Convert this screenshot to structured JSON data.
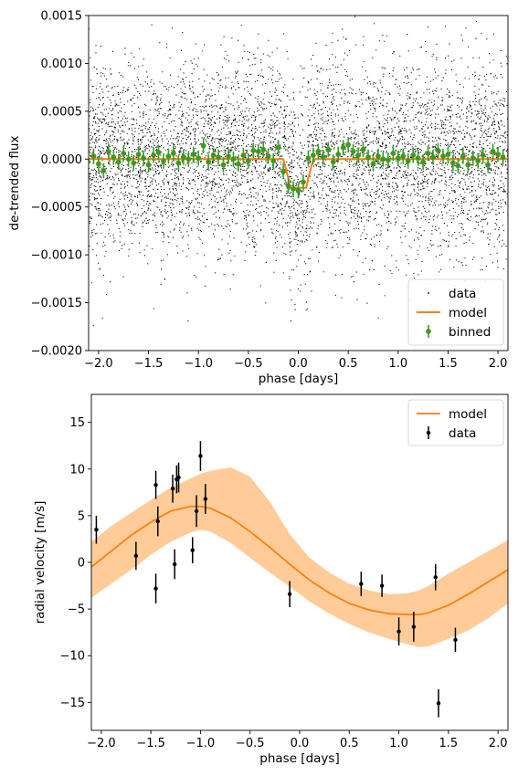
{
  "chart_data": [
    {
      "type": "scatter",
      "xlabel": "phase [days]",
      "ylabel": "de-trended flux",
      "xlim": [
        -2.1,
        2.1
      ],
      "ylim": [
        -0.002,
        0.0015
      ],
      "xticks": [
        "−2.0",
        "−1.5",
        "−1.0",
        "−0.5",
        "0.0",
        "0.5",
        "1.0",
        "1.5",
        "2.0"
      ],
      "yticks": [
        "0.0015",
        "0.0010",
        "0.0005",
        "0.0000",
        "−0.0005",
        "−0.0010",
        "−0.0015",
        "−0.0020"
      ],
      "legend": {
        "placement": "lower-right",
        "entries": [
          "data",
          "model",
          "binned"
        ]
      },
      "colors": {
        "data": "#000000",
        "model": "#ff7f0e",
        "binned": "#2ca02c",
        "binned_edge": "#7f7f00"
      },
      "series": [
        {
          "name": "data",
          "kind": "points",
          "approx_count": 6000,
          "center": 0.0,
          "std": 0.0005,
          "transit_depth": 0.0003,
          "note_values": "dense point cloud spanning the x range"
        },
        {
          "name": "model",
          "kind": "line",
          "x": [
            -2.1,
            -0.15,
            -0.1,
            -0.08,
            0.08,
            0.1,
            0.15,
            2.1
          ],
          "y": [
            0.0,
            0.0,
            -0.0002,
            -0.0003,
            -0.0003,
            -0.0002,
            0.0,
            0.0
          ]
        },
        {
          "name": "binned",
          "kind": "errorbar",
          "x": [
            -2.05,
            -2.0,
            -1.95,
            -1.9,
            -1.85,
            -1.8,
            -1.75,
            -1.7,
            -1.65,
            -1.6,
            -1.55,
            -1.5,
            -1.45,
            -1.4,
            -1.35,
            -1.3,
            -1.25,
            -1.2,
            -1.15,
            -1.1,
            -1.05,
            -1.0,
            -0.95,
            -0.9,
            -0.85,
            -0.8,
            -0.75,
            -0.7,
            -0.65,
            -0.6,
            -0.55,
            -0.5,
            -0.45,
            -0.4,
            -0.35,
            -0.3,
            -0.25,
            -0.2,
            -0.15,
            -0.1,
            -0.05,
            0.0,
            0.05,
            0.1,
            0.15,
            0.2,
            0.25,
            0.3,
            0.35,
            0.4,
            0.45,
            0.5,
            0.55,
            0.6,
            0.65,
            0.7,
            0.75,
            0.8,
            0.85,
            0.9,
            0.95,
            1.0,
            1.05,
            1.1,
            1.15,
            1.2,
            1.25,
            1.3,
            1.35,
            1.4,
            1.45,
            1.5,
            1.55,
            1.6,
            1.65,
            1.7,
            1.75,
            1.8,
            1.85,
            1.9,
            1.95,
            2.0,
            2.05
          ],
          "y": [
            3e-05,
            -5e-05,
            -0.00012,
            8e-05,
            2e-05,
            -3e-05,
            6e-05,
            0.0,
            -4e-05,
            5e-05,
            1e-05,
            -6e-05,
            4e-05,
            7e-05,
            -2e-05,
            3e-05,
            6e-05,
            -4e-05,
            2e-05,
            0.0,
            5e-05,
            1e-05,
            0.00014,
            -3e-05,
            4e-05,
            2e-05,
            -6e-05,
            3e-05,
            0.0,
            -5e-05,
            4e-05,
            -2e-05,
            9e-05,
            8e-05,
            0.0001,
            3e-05,
            -2e-05,
            0.00012,
            -0.00013,
            -0.00028,
            -0.00031,
            -0.00033,
            -0.00024,
            1e-05,
            4e-05,
            8e-05,
            2e-05,
            0.0001,
            -3e-05,
            5e-05,
            0.00012,
            0.00015,
            8e-05,
            4e-05,
            0.0001,
            2e-05,
            -5e-05,
            3e-05,
            0.0,
            -1e-05,
            6e-05,
            1e-05,
            3e-05,
            -2e-05,
            4e-05,
            1e-05,
            -3e-05,
            6e-05,
            2e-05,
            9e-05,
            3e-05,
            5e-05,
            -4e-05,
            -7e-05,
            3e-05,
            -6e-05,
            1e-05,
            -2e-05,
            4e-05,
            -6e-05,
            8e-05,
            5e-05,
            2e-05
          ],
          "err": 8e-05
        }
      ]
    },
    {
      "type": "scatter",
      "xlabel": "phase [days]",
      "ylabel": "radial velocity [m/s]",
      "xlim": [
        -2.1,
        2.1
      ],
      "ylim": [
        -18,
        18
      ],
      "xticks": [
        "−2.0",
        "−1.5",
        "−1.0",
        "−0.5",
        "0.0",
        "0.5",
        "1.0",
        "1.5",
        "2.0"
      ],
      "yticks": [
        "15",
        "10",
        "5",
        "0",
        "−5",
        "−10",
        "−15"
      ],
      "legend": {
        "placement": "top-right",
        "entries": [
          "model",
          "data"
        ]
      },
      "colors": {
        "model": "#ff7f0e",
        "band": "#ffcc99",
        "data": "#000000"
      },
      "series": [
        {
          "name": "model",
          "kind": "line",
          "x": [
            -2.1,
            -1.9,
            -1.7,
            -1.5,
            -1.3,
            -1.1,
            -1.0,
            -0.9,
            -0.7,
            -0.5,
            -0.3,
            -0.1,
            0.1,
            0.3,
            0.5,
            0.7,
            0.9,
            1.1,
            1.2,
            1.3,
            1.5,
            1.7,
            1.9,
            2.1
          ],
          "y": [
            -0.5,
            1.2,
            2.9,
            4.3,
            5.5,
            6.0,
            6.0,
            5.8,
            4.8,
            3.3,
            1.6,
            -0.2,
            -1.9,
            -3.3,
            -4.4,
            -5.1,
            -5.5,
            -5.6,
            -5.6,
            -5.4,
            -4.6,
            -3.4,
            -2.1,
            -0.8
          ],
          "band_lower": [
            -3.8,
            -2.3,
            -0.8,
            0.8,
            2.2,
            3.2,
            3.5,
            3.3,
            2.1,
            0.5,
            -1.1,
            -2.6,
            -4.2,
            -5.5,
            -6.6,
            -7.5,
            -8.2,
            -8.8,
            -9.1,
            -9.0,
            -8.2,
            -7.3,
            -6.0,
            -4.4
          ],
          "band_upper": [
            2.2,
            3.9,
            5.3,
            6.7,
            8.0,
            9.0,
            9.5,
            9.8,
            10.2,
            9.2,
            6.5,
            3.0,
            0.5,
            -1.1,
            -2.3,
            -3.0,
            -3.4,
            -3.3,
            -3.0,
            -2.5,
            -1.2,
            0.0,
            1.2,
            2.4
          ]
        },
        {
          "name": "data",
          "kind": "errorbar",
          "x": [
            -2.05,
            -1.65,
            -1.45,
            -1.45,
            -1.43,
            -1.28,
            -1.26,
            -1.24,
            -1.22,
            -1.08,
            -1.04,
            -1.0,
            -0.95,
            -0.1,
            0.62,
            0.83,
            1.0,
            1.15,
            1.37,
            1.4,
            1.57
          ],
          "y": [
            3.5,
            0.7,
            8.3,
            -2.8,
            4.4,
            7.9,
            -0.2,
            8.9,
            9.1,
            1.3,
            5.5,
            11.4,
            6.8,
            -3.4,
            -2.3,
            -2.5,
            -7.4,
            -6.9,
            -1.6,
            -15.1,
            -8.3
          ],
          "err": [
            1.5,
            1.5,
            1.5,
            1.6,
            1.6,
            1.5,
            1.6,
            1.5,
            1.6,
            1.4,
            1.7,
            1.6,
            1.6,
            1.4,
            1.3,
            1.2,
            1.5,
            1.6,
            1.4,
            1.5,
            1.3
          ]
        }
      ]
    }
  ]
}
